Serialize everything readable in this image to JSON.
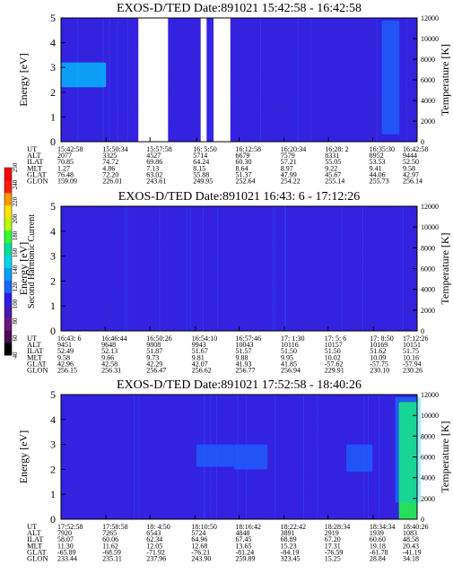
{
  "colors": {
    "background": "#3322e0",
    "band": "#1c64ff",
    "band_bright": "#00c8ff",
    "hot": "#22ff44",
    "noise": "#6b1a7a",
    "gap": "#ffffff"
  },
  "colorbar": {
    "label": "Second Harmonic Current",
    "ticks": [
      "40",
      "60",
      "80",
      "100",
      "120",
      "140",
      "160",
      "180",
      "200",
      "220",
      "240",
      "250"
    ],
    "colors": [
      "#000000",
      "#4b0a55",
      "#6b1a7a",
      "#4a19b0",
      "#2a1de8",
      "#1c64ff",
      "#00a0ff",
      "#00d8e8",
      "#00e0a0",
      "#30ff30",
      "#b8ff00",
      "#ffe600",
      "#ff9a00",
      "#ff2000",
      "#ff0000"
    ]
  },
  "chart_data": [
    {
      "type": "heatmap",
      "title": "EXOS-D/TED   Date:891021  15:42:58 - 16:42:58",
      "ylabel": "Energy [eV]",
      "ylabel_right": "Temperature [K]",
      "ylim": [
        0,
        5
      ],
      "ylim_right": [
        0,
        12000
      ],
      "yticks": [
        "0",
        "1",
        "2",
        "3",
        "4",
        "5"
      ],
      "yticks_right": [
        "0",
        "2000",
        "4000",
        "6000",
        "8000",
        "10000",
        "12000"
      ],
      "row_labels": [
        "UT",
        "ALT",
        "ILAT",
        "MLT",
        "GLAT",
        "GLON"
      ],
      "columns": [
        [
          "15:42:58",
          "2077",
          "70.85",
          "1.27",
          "76.48",
          "159.09"
        ],
        [
          "15:50:34",
          "3325",
          "74.72",
          "4.86",
          "72.20",
          "226.01"
        ],
        [
          "15:57:58",
          "4527",
          "69.86",
          "7.13",
          "63.02",
          "243.61"
        ],
        [
          "16: 5:50",
          "5714",
          "64.24",
          "8.15",
          "55.88",
          "249.95"
        ],
        [
          "16:12:58",
          "6679",
          "60.30",
          "8.64",
          "51.37",
          "252.64"
        ],
        [
          "16:20:34",
          "7579",
          "57.21",
          "8.97",
          "47.99",
          "254.22"
        ],
        [
          "16:28: 2",
          "8331",
          "55.05",
          "9.22",
          "45.67",
          "255.14"
        ],
        [
          "16:35:30",
          "8952",
          "53.53",
          "9.41",
          "44.06",
          "255.73"
        ],
        [
          "16:42:58",
          "9444",
          "52.50",
          "9.58",
          "42.97",
          "256.14"
        ]
      ],
      "gaps_ut": [
        [
          "15:56:00",
          "16:01:00"
        ],
        [
          "16:06:30",
          "16:07:30"
        ],
        [
          "16:08:40",
          "16:11:30"
        ]
      ],
      "features": [
        {
          "ut_start": "15:42:58",
          "ut_end": "15:50:34",
          "energy_eV": [
            2.2,
            3.2
          ],
          "level": "bright"
        },
        {
          "ut_start": "16:37:00",
          "ut_end": "16:40:00",
          "energy_eV": [
            0.3,
            4.9
          ],
          "level": "medium"
        }
      ]
    },
    {
      "type": "heatmap",
      "title": "EXOS-D/TED   Date:891021  16:43: 6 - 17:12:26",
      "ylabel": "Energy [eV]",
      "ylabel_right": "Temperature [K]",
      "ylim": [
        0,
        5
      ],
      "ylim_right": [
        0,
        12000
      ],
      "yticks": [
        "0",
        "1",
        "2",
        "3",
        "4",
        "5"
      ],
      "yticks_right": [
        "0",
        "2000",
        "4000",
        "6000",
        "8000",
        "10000",
        "12000"
      ],
      "row_labels": [
        "UT",
        "ALT",
        "ILAT",
        "MLT",
        "GLAT",
        "GLON"
      ],
      "columns": [
        [
          "16:43: 6",
          "9451",
          "52.49",
          "9.58",
          "42.96",
          "256.15"
        ],
        [
          "16:46:44",
          "9648",
          "52.13",
          "9.66",
          "42.58",
          "256.31"
        ],
        [
          "16:50:26",
          "9808",
          "51.87",
          "9.73",
          "42.29",
          "256.47"
        ],
        [
          "16:54:10",
          "9943",
          "51.67",
          "9.81",
          "42.07",
          "256.62"
        ],
        [
          "16:57:46",
          "10043",
          "51.57",
          "9.88",
          "41.93",
          "256.77"
        ],
        [
          "17: 1:30",
          "10116",
          "51.50",
          "9.95",
          "41.85",
          "256.94"
        ],
        [
          "17: 5: 6",
          "10157",
          "51.50",
          "10.02",
          "-57.62",
          "229.91"
        ],
        [
          "17: 8:50",
          "10169",
          "51.62",
          "10.09",
          "-57.75",
          "230.10"
        ],
        [
          "17:12:26",
          "10151",
          "51.75",
          "10.16",
          "-57.94",
          "230.26"
        ]
      ],
      "features": []
    },
    {
      "type": "heatmap",
      "title": "EXOS-D/TED   Date:891021  17:52:58 - 18:40:26",
      "ylabel": "Energy [eV]",
      "ylabel_right": "Temperature [K]",
      "ylim": [
        0,
        5
      ],
      "ylim_right": [
        0,
        12000
      ],
      "yticks": [
        "0",
        "1",
        "2",
        "3",
        "4",
        "5"
      ],
      "yticks_right": [
        "0",
        "2000",
        "4000",
        "6000",
        "8000",
        "10000",
        "12000"
      ],
      "row_labels": [
        "UT",
        "ALT",
        "ILAT",
        "MLT",
        "GLAT",
        "GLON"
      ],
      "columns": [
        [
          "17:52:58",
          "7920",
          "58.07",
          "11.30",
          "-65.89",
          "233.44"
        ],
        [
          "17:58:58",
          "7265",
          "60.06",
          "11.62",
          "-68.59",
          "235.11"
        ],
        [
          "18: 4:50",
          "6543",
          "62.34",
          "12.05",
          "-71.92",
          "237.96"
        ],
        [
          "18:10:50",
          "5724",
          "64.96",
          "12.68",
          "-76.21",
          "243.90"
        ],
        [
          "18:16:42",
          "4848",
          "67.45",
          "13.65",
          "-81.24",
          "259.89"
        ],
        [
          "18:22:42",
          "3891",
          "68.89",
          "15.23",
          "-84.19",
          "323.45"
        ],
        [
          "18:28:34",
          "2919",
          "67.20",
          "17.31",
          "-76.59",
          "15.25"
        ],
        [
          "18:34:34",
          "1939",
          "60.60",
          "19.18",
          "-61.78",
          "28.84"
        ],
        [
          "18:40:26",
          "1083",
          "48.58",
          "20.43",
          "-41.19",
          "34.18"
        ]
      ],
      "features": [
        {
          "ut_start": "18:11:00",
          "ut_end": "18:16:00",
          "energy_eV": [
            2.1,
            3.0
          ],
          "level": "medium"
        },
        {
          "ut_start": "18:16:00",
          "ut_end": "18:20:30",
          "energy_eV": [
            2.0,
            3.0
          ],
          "level": "medium"
        },
        {
          "ut_start": "18:31:00",
          "ut_end": "18:34:30",
          "energy_eV": [
            1.9,
            3.0
          ],
          "level": "medium"
        },
        {
          "ut_start": "18:38:00",
          "ut_end": "18:40:26",
          "energy_eV": [
            0.0,
            4.7
          ],
          "level": "hot"
        }
      ]
    }
  ]
}
